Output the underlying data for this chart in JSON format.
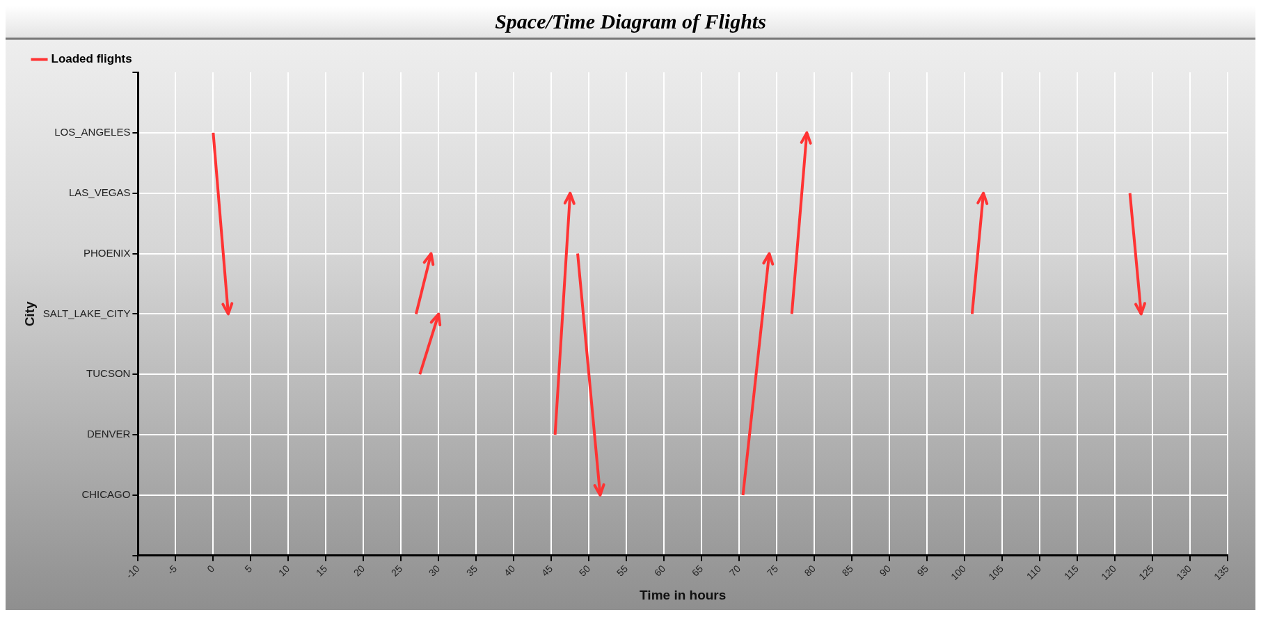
{
  "chart_data": {
    "type": "line",
    "title": "Space/Time Diagram of Flights",
    "xlabel": "Time in hours",
    "ylabel": "City",
    "orientation": "horizontal",
    "xlim": [
      -10,
      135
    ],
    "xticks": [
      -10,
      -5,
      0,
      5,
      10,
      15,
      20,
      25,
      30,
      35,
      40,
      45,
      50,
      55,
      60,
      65,
      70,
      75,
      80,
      85,
      90,
      95,
      100,
      105,
      110,
      115,
      120,
      125,
      130,
      135
    ],
    "categories": [
      null,
      "LOS_ANGELES",
      "LAS_VEGAS",
      "PHOENIX",
      "SALT_LAKE_CITY",
      "TUCSON",
      "DENVER",
      "CHICAGO",
      null
    ],
    "grid": true,
    "legend": "top left",
    "line_style": "solid",
    "series": [
      {
        "name": "Loaded flights",
        "color": "#ff3333",
        "values": [
          null,
          0,
          null,
          null,
          2,
          null,
          null,
          null,
          null
        ]
      },
      {
        "color": "#ff3333",
        "values": [
          null,
          null,
          null,
          29,
          27,
          null,
          null,
          null,
          null
        ]
      },
      {
        "color": "#ff3333",
        "values": [
          null,
          null,
          null,
          null,
          30,
          27.5,
          null,
          null,
          null
        ]
      },
      {
        "color": "#ff3333",
        "values": [
          null,
          null,
          47.5,
          null,
          null,
          null,
          45.5,
          null,
          null
        ]
      },
      {
        "color": "#ff3333",
        "values": [
          null,
          null,
          null,
          48.5,
          null,
          null,
          null,
          51.5,
          null
        ]
      },
      {
        "color": "#ff3333",
        "values": [
          null,
          null,
          null,
          74,
          null,
          null,
          null,
          70.5,
          null
        ]
      },
      {
        "color": "#ff3333",
        "values": [
          null,
          79,
          null,
          null,
          77,
          null,
          null,
          null,
          null
        ]
      },
      {
        "color": "#ff3333",
        "values": [
          null,
          null,
          102.5,
          null,
          101,
          null,
          null,
          null,
          null
        ]
      },
      {
        "color": "#ff3333",
        "values": [
          null,
          null,
          122,
          null,
          123.5,
          null,
          null,
          null,
          null
        ]
      }
    ]
  }
}
